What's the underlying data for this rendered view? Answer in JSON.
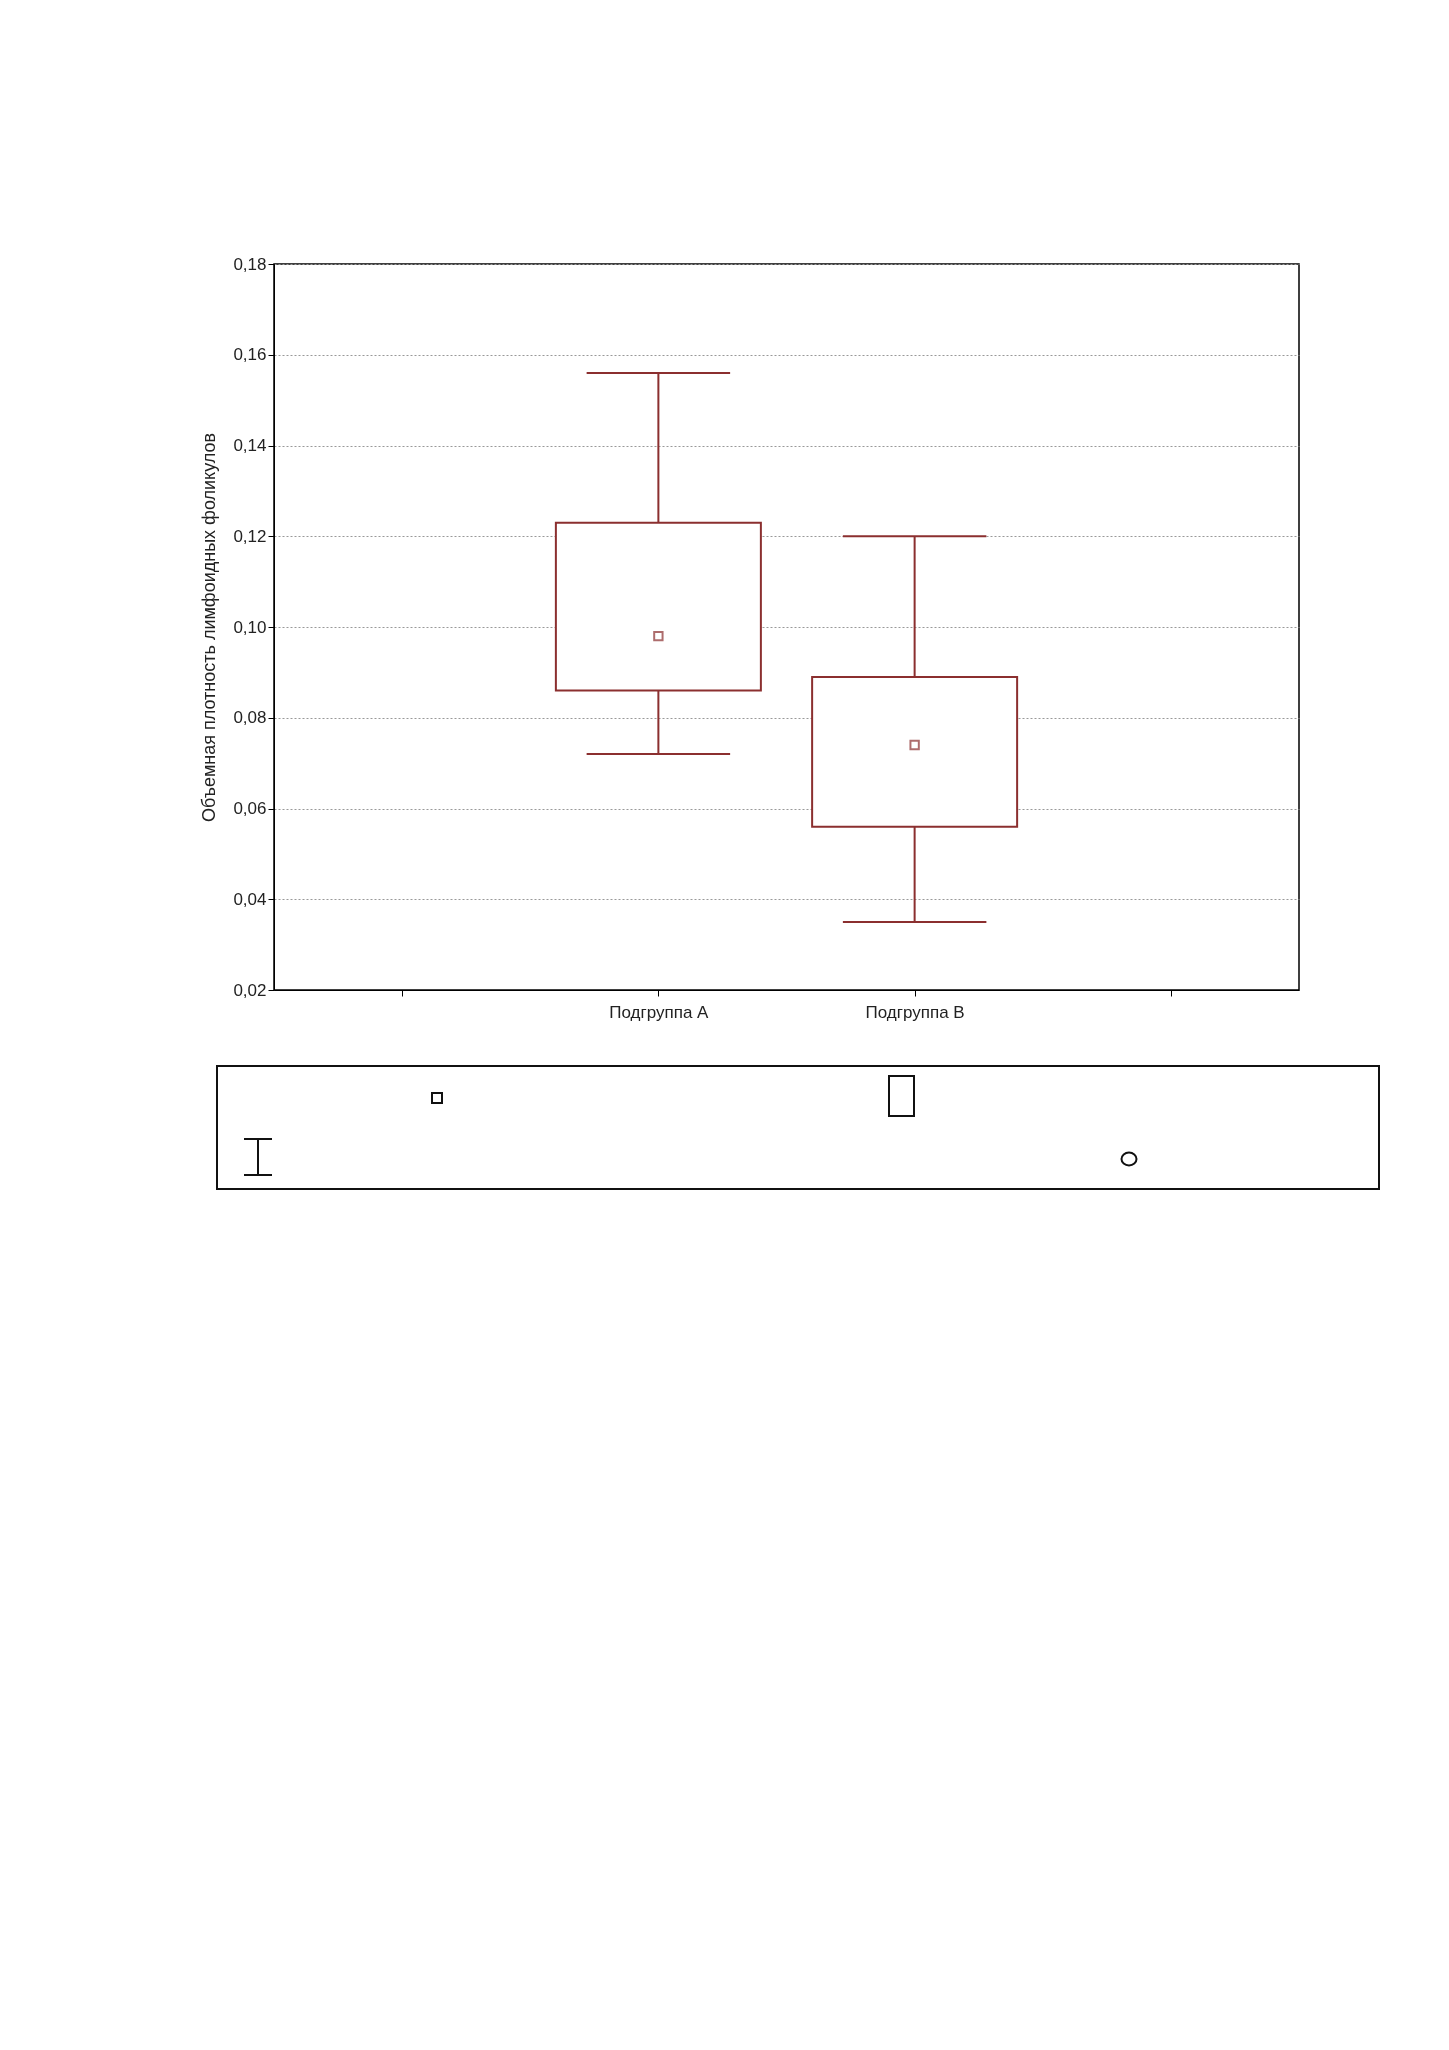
{
  "chart_data": {
    "type": "box",
    "ylabel": "Объемная плотность лимфоидных фоликулов",
    "categories": [
      null,
      "Подгруппа A",
      "Подгруппа B",
      null
    ],
    "boxes": [
      null,
      {
        "low": 0.072,
        "q1": 0.086,
        "median": 0.098,
        "q3": 0.123,
        "high": 0.156
      },
      {
        "low": 0.035,
        "q1": 0.056,
        "median": 0.074,
        "q3": 0.089,
        "high": 0.12
      },
      null
    ],
    "color": "#8b2f2f",
    "ylim": [
      0.02,
      0.18
    ],
    "yticks": [
      {
        "value": 0.02,
        "label": "0,02"
      },
      {
        "value": 0.04,
        "label": "0,04"
      },
      {
        "value": 0.06,
        "label": "0,06"
      },
      {
        "value": 0.08,
        "label": "0,08"
      },
      {
        "value": 0.1,
        "label": "0,10"
      },
      {
        "value": 0.12,
        "label": "0,12"
      },
      {
        "value": 0.14,
        "label": "0,14"
      },
      {
        "value": 0.16,
        "label": "0,16"
      },
      {
        "value": 0.18,
        "label": "0,18"
      }
    ],
    "grid": "y",
    "marker": "square"
  }
}
